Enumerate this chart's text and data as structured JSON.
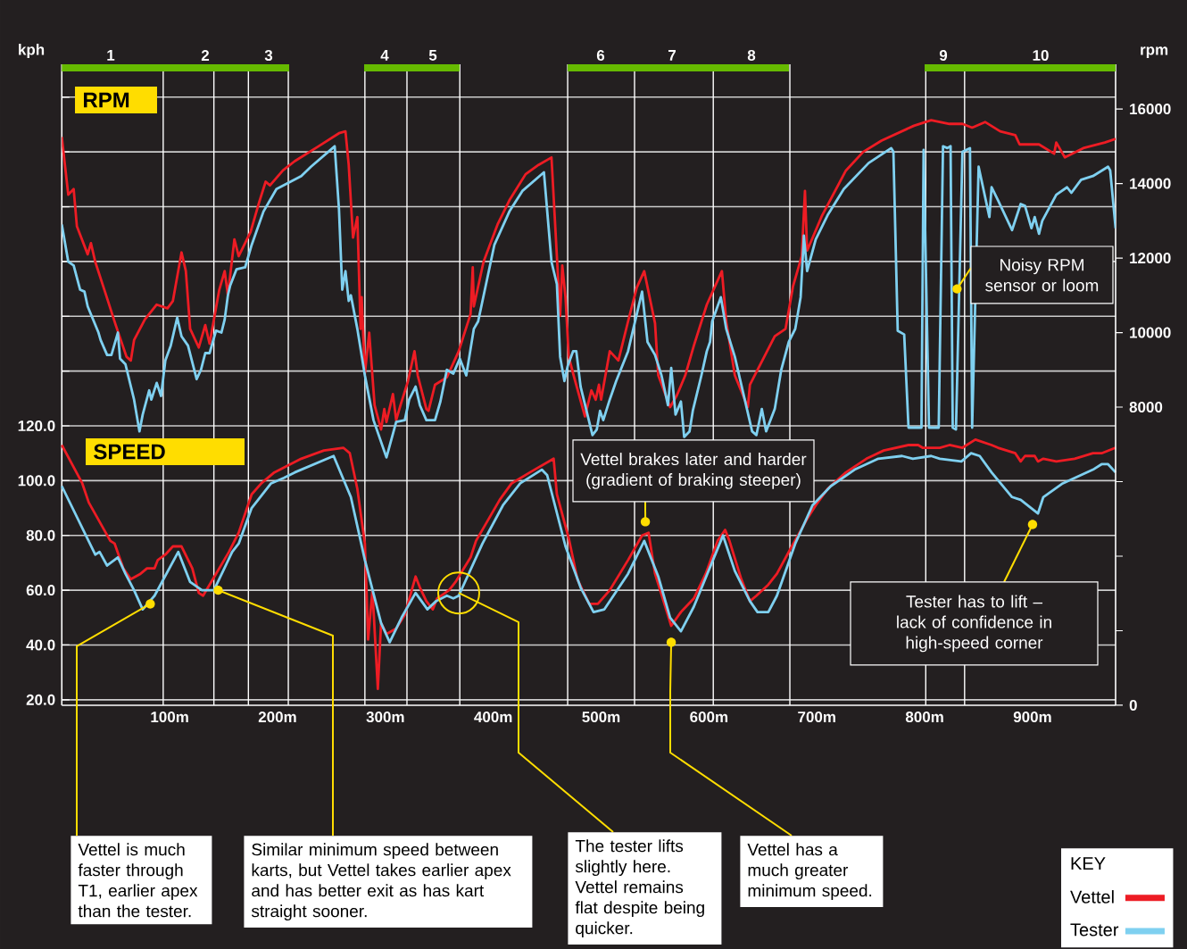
{
  "chart_data": {
    "type": "line",
    "ylabel": "kph",
    "y2label": "rpm",
    "legend_title": "KEY",
    "legend": "bottom right",
    "grid": "y",
    "xlim": [
      0,
      977
    ],
    "ylim": [
      18,
      252
    ],
    "y2lim": [
      0,
      17200
    ],
    "xticks": [
      {
        "value": 100,
        "label": "100m"
      },
      {
        "value": 200,
        "label": "200m"
      },
      {
        "value": 300,
        "label": "300m"
      },
      {
        "value": 400,
        "label": "400m"
      },
      {
        "value": 500,
        "label": "500m"
      },
      {
        "value": 600,
        "label": "600m"
      },
      {
        "value": 700,
        "label": "700m"
      },
      {
        "value": 800,
        "label": "800m"
      },
      {
        "value": 900,
        "label": "900m"
      }
    ],
    "yticks": [
      {
        "value": 20,
        "label": "20.0"
      },
      {
        "value": 40,
        "label": "40.0"
      },
      {
        "value": 60,
        "label": "60.0"
      },
      {
        "value": 80,
        "label": "80.0"
      },
      {
        "value": 100,
        "label": "100.0"
      },
      {
        "value": 120,
        "label": "120.0"
      },
      {
        "value": 140,
        "label": null
      },
      {
        "value": 160,
        "label": null
      },
      {
        "value": 180,
        "label": null
      },
      {
        "value": 200,
        "label": null
      },
      {
        "value": 220,
        "label": null
      },
      {
        "value": 240,
        "label": null
      }
    ],
    "y2ticks": [
      0,
      {
        "value": 2000,
        "label": null
      },
      {
        "value": 4000,
        "label": null
      },
      {
        "value": 6000,
        "label": null
      },
      8000,
      10000,
      12000,
      14000,
      16000
    ],
    "ref_lines": [
      {
        "axis": "x",
        "value": 94,
        "color": "#ffffff"
      },
      {
        "axis": "x",
        "value": 141,
        "color": "#ffffff"
      },
      {
        "axis": "x",
        "value": 173,
        "color": "#ffffff"
      },
      {
        "axis": "x",
        "value": 210,
        "color": "#ffffff"
      },
      {
        "axis": "x",
        "value": 281,
        "color": "#ffffff"
      },
      {
        "axis": "x",
        "value": 320,
        "color": "#ffffff"
      },
      {
        "axis": "x",
        "value": 369,
        "color": "#ffffff"
      },
      {
        "axis": "x",
        "value": 469,
        "color": "#ffffff"
      },
      {
        "axis": "x",
        "value": 531,
        "color": "#ffffff"
      },
      {
        "axis": "x",
        "value": 604,
        "color": "#ffffff"
      },
      {
        "axis": "x",
        "value": 675,
        "color": "#ffffff"
      },
      {
        "axis": "x",
        "value": 801,
        "color": "#ffffff"
      },
      {
        "axis": "x",
        "value": 837,
        "color": "#ffffff"
      }
    ],
    "annotations": [
      "RPM",
      "SPEED",
      {
        "text": "Vettel is much faster through T1, earlier apex than the tester.",
        "x": 82,
        "y": 55
      },
      {
        "text": "Similar minimum speed between karts, but Vettel takes earlier apex and has better exit as has kart straight sooner.",
        "x": 145,
        "y": 60
      },
      {
        "text": "The tester lifts slightly here. Vettel remains flat despite being quicker.",
        "x": 368,
        "y": 59
      },
      {
        "text": "Vettel has a much greater minimum speed.",
        "x": 565,
        "y": 41
      },
      {
        "text": "Vettel brakes later and harder (gradient of braking steeper)",
        "x": 541,
        "y": 85
      },
      {
        "text": "Tester has to lift – lack of confidence in high-speed corner",
        "x": 900,
        "y": 84
      },
      {
        "text": "Noisy RPM sensor or loom",
        "x": 830,
        "y": 170
      },
      "1",
      "2",
      "3",
      "4",
      "5",
      "6",
      "7",
      "8",
      "9",
      "10"
    ],
    "series": [
      {
        "name": "Vettel",
        "color": "#ed1c24",
        "x": [
          0,
          19,
          25,
          45,
          49,
          57,
          64,
          73,
          79,
          86,
          89,
          96,
          103,
          111,
          121,
          127,
          131,
          143,
          155,
          164,
          176,
          185,
          197,
          222,
          243,
          261,
          267,
          274,
          281,
          284,
          288,
          293,
          296,
          301,
          310,
          318,
          328,
          332,
          338,
          344,
          348,
          359,
          365,
          379,
          384,
          406,
          417,
          434,
          456,
          459,
          470,
          478,
          489,
          497,
          508,
          525,
          538,
          544,
          550,
          565,
          574,
          586,
          597,
          608,
          615,
          619,
          630,
          638,
          644,
          655,
          663,
          674,
          691,
          699,
          710,
          727,
          746,
          762,
          785,
          794,
          798,
          814,
          823,
          835,
          847,
          862,
          868,
          884,
          889,
          893,
          902,
          905,
          910,
          922,
          939,
          956,
          964,
          977
        ],
        "values": [
          113,
          99,
          92,
          78,
          77,
          68,
          64,
          66,
          68,
          68,
          71,
          73,
          76,
          76,
          68,
          59,
          58,
          66,
          74,
          81,
          95,
          99,
          103,
          108,
          111,
          112,
          110,
          97,
          77,
          42,
          60,
          24,
          48,
          44,
          46,
          51,
          65,
          61,
          56,
          53,
          57,
          60,
          63,
          72,
          78,
          93,
          99,
          103,
          108,
          95,
          79,
          64,
          55,
          55,
          60,
          71,
          80,
          81,
          66,
          47,
          52,
          57,
          66,
          78,
          82,
          78,
          64,
          56,
          58,
          62,
          66,
          74,
          86,
          91,
          97,
          103,
          108,
          111,
          113,
          113,
          112,
          112,
          113,
          112,
          115,
          113,
          112,
          110,
          107,
          109,
          109,
          107,
          108,
          107,
          108,
          110,
          110,
          112
        ]
      },
      {
        "name": "Tester",
        "color": "#7fd0f0",
        "x": [
          0,
          31,
          35,
          42,
          52,
          59,
          67,
          75,
          86,
          108,
          119,
          130,
          141,
          158,
          164,
          176,
          194,
          206,
          216,
          252,
          268,
          281,
          296,
          304,
          315,
          328,
          339,
          347,
          357,
          363,
          368,
          390,
          409,
          425,
          445,
          450,
          467,
          481,
          493,
          503,
          525,
          540,
          553,
          564,
          574,
          586,
          611,
          613,
          624,
          638,
          645,
          655,
          663,
          680,
          696,
          713,
          735,
          757,
          779,
          789,
          806,
          814,
          834,
          843,
          851,
          862,
          881,
          889,
          905,
          910,
          928,
          956,
          964,
          970,
          977
        ],
        "values": [
          98,
          73,
          74,
          69,
          72,
          66,
          60,
          53,
          58,
          74,
          63,
          60,
          60,
          74,
          77,
          90,
          99,
          101,
          103,
          109,
          94,
          71,
          48,
          41,
          50,
          59,
          53,
          56,
          58,
          57,
          58,
          77,
          91,
          99,
          104,
          102,
          76,
          61,
          52,
          53,
          66,
          78,
          65,
          50,
          45,
          54,
          78,
          80,
          67,
          56,
          52,
          52,
          58,
          77,
          91,
          98,
          104,
          108,
          109,
          108,
          109,
          108,
          107,
          110,
          109,
          103,
          94,
          93,
          88,
          94,
          99,
          104,
          106,
          106,
          103
        ]
      },
      {
        "color": "#ed1c24",
        "axis": "y2",
        "x": [
          0,
          6,
          11,
          14,
          24,
          27,
          31,
          40,
          50,
          60,
          64,
          67,
          77,
          88,
          98,
          103,
          111,
          115,
          119,
          127,
          133,
          137,
          146,
          151,
          154,
          160,
          164,
          175,
          183,
          189,
          193,
          205,
          216,
          238,
          257,
          263,
          266,
          270,
          274,
          277,
          278,
          281,
          285,
          290,
          296,
          299,
          301,
          307,
          310,
          314,
          321,
          327,
          330,
          338,
          340,
          346,
          357,
          368,
          379,
          381,
          382,
          391,
          404,
          415,
          430,
          442,
          454,
          459,
          462,
          464,
          467,
          470,
          475,
          485,
          491,
          495,
          498,
          500,
          508,
          516,
          525,
          533,
          540,
          550,
          553,
          564,
          570,
          578,
          586,
          598,
          612,
          616,
          624,
          636,
          638,
          661,
          671,
          678,
          686,
          689,
          691,
          705,
          727,
          743,
          760,
          790,
          806,
          823,
          835,
          844,
          856,
          870,
          884,
          888,
          906,
          920,
          922,
          930,
          947,
          967,
          977
        ],
        "values": [
          15250,
          13700,
          13850,
          12850,
          12100,
          12400,
          11900,
          11100,
          10200,
          9350,
          9250,
          9800,
          10350,
          10750,
          10650,
          10850,
          12150,
          11650,
          10100,
          9600,
          10200,
          9700,
          11150,
          11650,
          11000,
          12500,
          12050,
          12700,
          13500,
          14050,
          13950,
          14350,
          14600,
          15000,
          15350,
          15400,
          14500,
          12550,
          13100,
          10100,
          10950,
          8900,
          10000,
          8050,
          7400,
          7950,
          7600,
          8350,
          7650,
          8050,
          8700,
          9500,
          8850,
          7950,
          7900,
          8600,
          8800,
          9500,
          10500,
          11750,
          10700,
          11900,
          12900,
          13550,
          14250,
          14500,
          14700,
          12050,
          10450,
          11800,
          10950,
          9350,
          8800,
          7750,
          8450,
          8200,
          8600,
          8200,
          9500,
          9250,
          10300,
          11200,
          11650,
          10250,
          8850,
          8000,
          8300,
          8850,
          9650,
          10750,
          11650,
          10300,
          8850,
          8000,
          8600,
          9900,
          10100,
          11250,
          12050,
          13800,
          12200,
          13150,
          14350,
          14850,
          15150,
          15550,
          15700,
          15600,
          15600,
          15500,
          15650,
          15400,
          15300,
          15050,
          15050,
          14800,
          15100,
          14700,
          14950,
          15100,
          15200
        ]
      },
      {
        "color": "#7fd0f0",
        "axis": "y2",
        "x": [
          0,
          6,
          11,
          17,
          21,
          24,
          34,
          36,
          42,
          46,
          52,
          54,
          59,
          67,
          72,
          75,
          81,
          83,
          88,
          92,
          96,
          101,
          107,
          111,
          117,
          125,
          129,
          133,
          137,
          143,
          148,
          151,
          154,
          156,
          162,
          170,
          176,
          187,
          199,
          222,
          231,
          253,
          257,
          260,
          263,
          266,
          268,
          274,
          281,
          289,
          301,
          310,
          318,
          322,
          328,
          332,
          338,
          346,
          351,
          357,
          363,
          369,
          375,
          382,
          386,
          401,
          415,
          427,
          437,
          447,
          454,
          459,
          462,
          466,
          469,
          474,
          477,
          481,
          492,
          496,
          499,
          502,
          508,
          514,
          525,
          538,
          543,
          550,
          556,
          562,
          565,
          569,
          574,
          577,
          582,
          585,
          593,
          598,
          601,
          603,
          611,
          616,
          624,
          630,
          640,
          644,
          649,
          653,
          661,
          667,
          674,
          680,
          685,
          688,
          691,
          699,
          710,
          725,
          748,
          769,
          771,
          775,
          781,
          785,
          797,
          799,
          804,
          813,
          817,
          821,
          824,
          826,
          829,
          835,
          842,
          844,
          850,
          860,
          862,
          868,
          881,
          889,
          893,
          899,
          902,
          906,
          909,
          922,
          932,
          936,
          945,
          956,
          970,
          972,
          977
        ],
        "values": [
          12900,
          11900,
          11800,
          11150,
          11100,
          10700,
          10000,
          9800,
          9400,
          9400,
          10000,
          9300,
          9150,
          8200,
          7350,
          7800,
          8450,
          8200,
          8650,
          8300,
          9250,
          9650,
          10400,
          9900,
          9650,
          8750,
          9000,
          9450,
          9450,
          10050,
          10000,
          10350,
          11000,
          11250,
          11700,
          11750,
          12350,
          13250,
          13850,
          14200,
          14450,
          15000,
          13300,
          11150,
          11650,
          10850,
          11000,
          10100,
          8850,
          7650,
          6650,
          7600,
          7650,
          8200,
          8550,
          8050,
          7650,
          7650,
          8150,
          9000,
          8900,
          9300,
          8850,
          10100,
          10300,
          12350,
          13250,
          13800,
          14050,
          14300,
          11900,
          11300,
          9350,
          8700,
          9100,
          9500,
          9500,
          8550,
          7250,
          7400,
          7900,
          7650,
          8200,
          8700,
          9500,
          11100,
          9750,
          9400,
          8850,
          8050,
          9050,
          7800,
          8150,
          7200,
          7350,
          7900,
          8850,
          9500,
          9750,
          10300,
          10950,
          10100,
          9350,
          8600,
          7350,
          7250,
          7950,
          7350,
          7950,
          9000,
          9750,
          10100,
          10950,
          12600,
          11650,
          12500,
          13150,
          13850,
          14550,
          14950,
          14850,
          10050,
          9950,
          7450,
          7450,
          14900,
          7450,
          7450,
          15000,
          14950,
          15000,
          7450,
          7400,
          14850,
          14950,
          7450,
          14450,
          13100,
          13900,
          13550,
          12750,
          13450,
          13400,
          12800,
          13100,
          12650,
          13000,
          13700,
          13900,
          13750,
          14100,
          14200,
          14450,
          14350,
          12800
        ]
      }
    ]
  }
}
